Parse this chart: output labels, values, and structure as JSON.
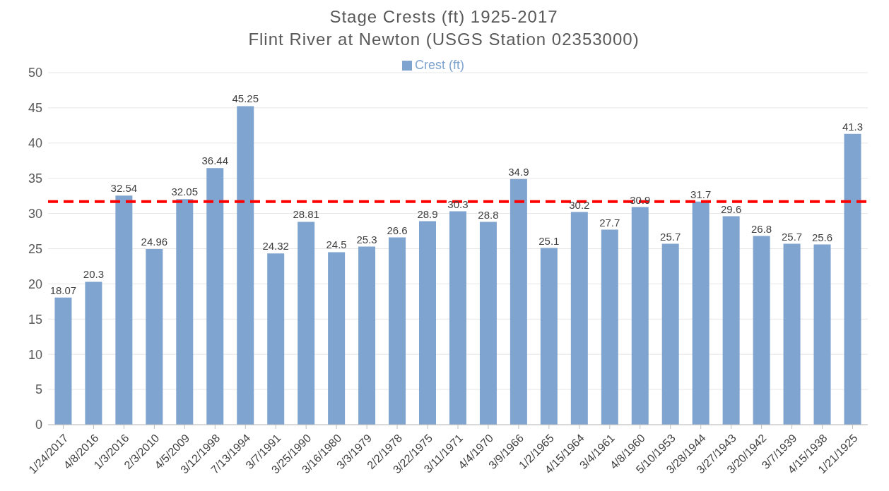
{
  "chart_data": {
    "type": "bar",
    "title": "Stage Crests (ft) 1925-2017\nFlint River at Newton (USGS Station 02353000)",
    "categories": [
      "1/24/2017",
      "4/8/2016",
      "1/3/2016",
      "2/3/2010",
      "4/5/2009",
      "3/12/1998",
      "7/13/1994",
      "3/7/1991",
      "3/25/1990",
      "3/16/1980",
      "3/3/1979",
      "2/2/1978",
      "3/22/1975",
      "3/11/1971",
      "4/4/1970",
      "3/9/1966",
      "1/2/1965",
      "4/15/1964",
      "3/4/1961",
      "4/8/1960",
      "5/10/1953",
      "3/28/1944",
      "3/27/1943",
      "3/20/1942",
      "3/7/1939",
      "4/15/1938",
      "1/21/1925"
    ],
    "series": [
      {
        "name": "Crest (ft)",
        "color": "#7fa4cf",
        "values": [
          18.07,
          20.3,
          32.54,
          24.96,
          32.05,
          36.44,
          45.25,
          24.32,
          28.81,
          24.5,
          25.3,
          26.6,
          28.9,
          30.3,
          28.8,
          34.9,
          25.1,
          30.2,
          27.7,
          30.9,
          25.7,
          31.7,
          29.6,
          26.8,
          25.7,
          25.6,
          41.3
        ]
      }
    ],
    "ylim": [
      0,
      50
    ],
    "yticks": [
      0,
      5,
      10,
      15,
      20,
      25,
      30,
      35,
      40,
      45,
      50
    ],
    "grid": "y",
    "legend": "top",
    "data_labels": true,
    "ref_lines": [
      {
        "axis": "y",
        "value": 31.7,
        "color": "#ff0000",
        "line_style": "dashed"
      }
    ]
  }
}
